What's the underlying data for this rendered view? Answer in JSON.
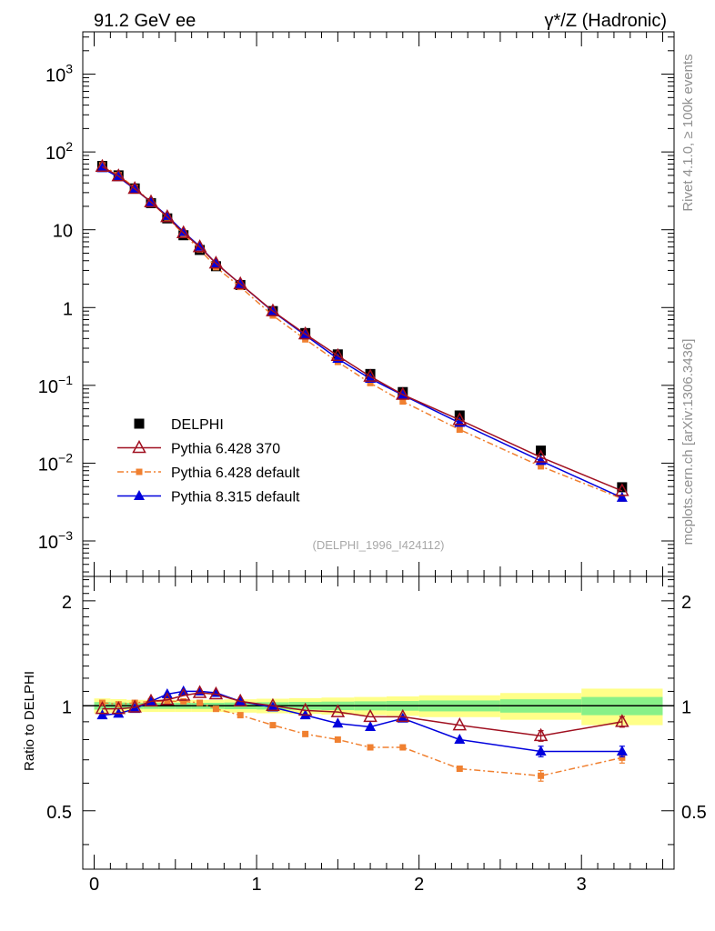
{
  "header": {
    "left": "91.2 GeV ee",
    "right": "γ*/Z (Hadronic)"
  },
  "side_labels": {
    "rivet": "Rivet 4.1.0, ≥ 100k events",
    "mcplots": "mcplots.cern.ch [arXiv:1306.3436]"
  },
  "chart_data": {
    "type": "line",
    "analysis_label": "(DELPHI_1996_I424112)",
    "ratio_ylabel": "Ratio to DELPHI",
    "x": [
      0.05,
      0.15,
      0.25,
      0.35,
      0.45,
      0.55,
      0.65,
      0.75,
      0.9,
      1.1,
      1.3,
      1.5,
      1.7,
      1.9,
      2.25,
      2.75,
      3.25
    ],
    "xlim": [
      -0.07,
      3.57
    ],
    "top_ylim": [
      0.00035,
      3500
    ],
    "ratio_ylim": [
      0.34,
      2.35
    ],
    "top_yticks": [
      {
        "v": 0.001,
        "base": "10",
        "exp": "−3"
      },
      {
        "v": 0.01,
        "base": "10",
        "exp": "−2"
      },
      {
        "v": 0.1,
        "base": "10",
        "exp": "−1"
      },
      {
        "v": 1,
        "base": "1",
        "exp": ""
      },
      {
        "v": 10,
        "base": "10",
        "exp": ""
      },
      {
        "v": 100,
        "base": "10",
        "exp": "2"
      },
      {
        "v": 1000,
        "base": "10",
        "exp": "3"
      }
    ],
    "ratio_yticks": [
      {
        "v": 0.5,
        "label": "0.5"
      },
      {
        "v": 1,
        "label": "1"
      },
      {
        "v": 2,
        "label": "2"
      }
    ],
    "xticks": [
      {
        "v": 0,
        "label": "0"
      },
      {
        "v": 1,
        "label": "1"
      },
      {
        "v": 2,
        "label": "2"
      },
      {
        "v": 3,
        "label": "3"
      }
    ],
    "band_edges": [
      0,
      0.1,
      0.2,
      0.3,
      0.4,
      0.5,
      0.6,
      0.7,
      0.8,
      1.0,
      1.2,
      1.4,
      1.6,
      1.8,
      2.0,
      2.5,
      3.0,
      3.5
    ],
    "band_inner": [
      0.025,
      0.022,
      0.02,
      0.02,
      0.02,
      0.02,
      0.02,
      0.02,
      0.022,
      0.024,
      0.026,
      0.028,
      0.03,
      0.032,
      0.036,
      0.044,
      0.06
    ],
    "band_outer": [
      0.05,
      0.045,
      0.04,
      0.04,
      0.04,
      0.04,
      0.04,
      0.04,
      0.044,
      0.048,
      0.052,
      0.056,
      0.06,
      0.064,
      0.072,
      0.088,
      0.12
    ],
    "series": [
      {
        "name": "DELPHI",
        "marker": "square",
        "color": "#000000",
        "line": "none",
        "values": [
          66,
          50,
          34,
          22,
          14,
          8.5,
          5.5,
          3.4,
          1.95,
          0.9,
          0.47,
          0.25,
          0.14,
          0.082,
          0.041,
          0.0145,
          0.0049
        ],
        "ratio": [
          1,
          1,
          1,
          1,
          1,
          1,
          1,
          1,
          1,
          1,
          1,
          1,
          1,
          1,
          1,
          1,
          1
        ]
      },
      {
        "name": "Pythia 6.428 370",
        "marker": "open-triangle",
        "color": "#a01020",
        "line": "solid",
        "values": [
          64.7,
          49.0,
          33.7,
          22.7,
          14.6,
          9.1,
          6.0,
          3.7,
          2.01,
          0.9,
          0.456,
          0.24,
          0.13,
          0.076,
          0.036,
          0.0119,
          0.0044
        ],
        "ratio": [
          0.98,
          0.98,
          0.99,
          1.03,
          1.04,
          1.07,
          1.09,
          1.08,
          1.03,
          1.0,
          0.97,
          0.96,
          0.93,
          0.93,
          0.88,
          0.82,
          0.9
        ]
      },
      {
        "name": "Pythia 6.428 default",
        "marker": "small-square",
        "color": "#f08030",
        "line": "dashdot",
        "values": [
          67.3,
          50.5,
          34.7,
          22.7,
          14.4,
          8.8,
          5.6,
          3.3,
          1.84,
          0.79,
          0.39,
          0.2,
          0.107,
          0.062,
          0.027,
          0.0091,
          0.0035
        ],
        "ratio": [
          1.02,
          1.01,
          1.02,
          1.03,
          1.03,
          1.03,
          1.02,
          0.98,
          0.94,
          0.88,
          0.83,
          0.8,
          0.76,
          0.76,
          0.66,
          0.63,
          0.71
        ]
      },
      {
        "name": "Pythia 8.315 default",
        "marker": "triangle",
        "color": "#0000dd",
        "line": "solid",
        "values": [
          62.0,
          47.5,
          33.3,
          22.7,
          15.1,
          9.4,
          6.1,
          3.7,
          2.01,
          0.89,
          0.44,
          0.22,
          0.122,
          0.075,
          0.033,
          0.0107,
          0.0036
        ],
        "ratio": [
          0.94,
          0.95,
          0.98,
          1.03,
          1.08,
          1.1,
          1.1,
          1.09,
          1.03,
          0.99,
          0.94,
          0.89,
          0.87,
          0.92,
          0.8,
          0.74,
          0.74
        ]
      }
    ]
  }
}
